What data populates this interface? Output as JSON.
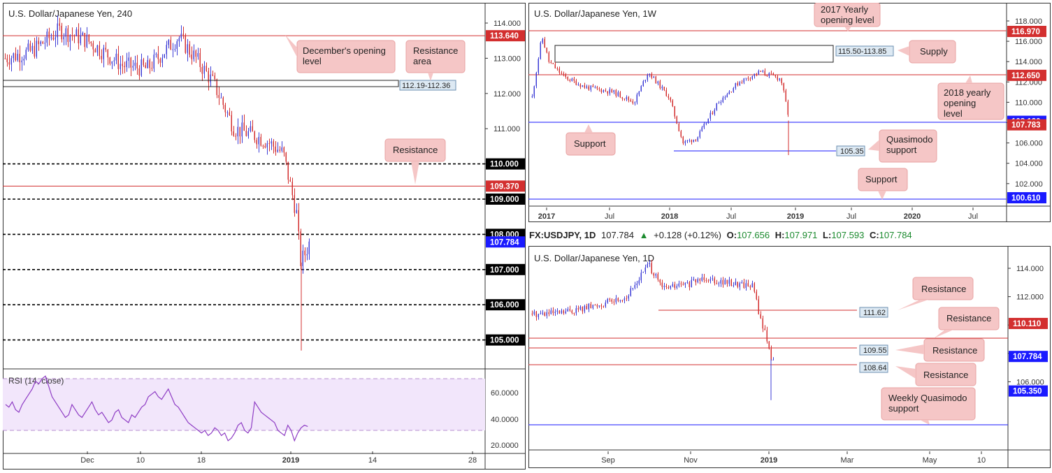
{
  "panels": [
    {
      "id": "p1",
      "title": "U.S. Dollar/Japanese Yen, 240",
      "ticks": [
        {
          "label": "114.000",
          "v": 114.0
        },
        {
          "label": "113.000",
          "v": 113.0
        },
        {
          "label": "112.000",
          "v": 112.0
        },
        {
          "label": "111.000",
          "v": 111.0
        },
        {
          "label": "110.000",
          "v": 110.0
        },
        {
          "label": "109.000",
          "v": 109.0
        },
        {
          "label": "108.000",
          "v": 108.0
        },
        {
          "label": "107.000",
          "v": 107.0
        },
        {
          "label": "106.000",
          "v": 106.0
        },
        {
          "label": "105.000",
          "v": 105.0
        }
      ],
      "xticks": [
        "Dec",
        "10",
        "18",
        "2019",
        "14",
        "28"
      ],
      "hlines": [
        {
          "v": 113.64,
          "color": "#d32f2f",
          "style": "solid"
        },
        {
          "v": 109.37,
          "color": "#d32f2f",
          "style": "solid"
        },
        {
          "v": 110.0,
          "color": "#000000",
          "style": "dash"
        },
        {
          "v": 109.0,
          "color": "#000000",
          "style": "dash"
        },
        {
          "v": 108.0,
          "color": "#000000",
          "style": "dash"
        },
        {
          "v": 107.0,
          "color": "#000000",
          "style": "dash"
        },
        {
          "v": 106.0,
          "color": "#000000",
          "style": "dash"
        },
        {
          "v": 105.0,
          "color": "#000000",
          "style": "dash"
        }
      ],
      "badges": [
        {
          "label": "113.640",
          "v": 113.64,
          "bg": "#d32f2f"
        },
        {
          "label": "110.000",
          "v": 110.0,
          "bg": "#000000"
        },
        {
          "label": "109.370",
          "v": 109.37,
          "bg": "#d32f2f"
        },
        {
          "label": "109.000",
          "v": 109.0,
          "bg": "#000000"
        },
        {
          "label": "108.000",
          "v": 108.0,
          "bg": "#000000"
        },
        {
          "label": "107.784",
          "v": 107.784,
          "bg": "#1a1aff"
        },
        {
          "label": "107.000",
          "v": 107.0,
          "bg": "#000000"
        },
        {
          "label": "106.000",
          "v": 106.0,
          "bg": "#000000"
        },
        {
          "label": "105.000",
          "v": 105.0,
          "bg": "#000000"
        }
      ],
      "zone": {
        "label": "112.19-112.36",
        "top": 112.36,
        "bottom": 112.19
      },
      "callouts": [
        {
          "text": [
            "December's opening",
            "level"
          ]
        },
        {
          "text": [
            "Resistance",
            "area"
          ]
        },
        {
          "text": [
            "Resistance"
          ]
        }
      ],
      "rsi": {
        "title": "RSI (14, close)",
        "ticks": [
          "60.0000",
          "40.0000",
          "20.0000"
        ],
        "upper": 70,
        "lower": 30
      }
    },
    {
      "id": "p2",
      "title": "U.S. Dollar/Japanese Yen, 1W",
      "ticks": [
        {
          "label": "118.000",
          "v": 118
        },
        {
          "label": "116.000",
          "v": 116
        },
        {
          "label": "114.000",
          "v": 114
        },
        {
          "label": "112.000",
          "v": 112
        },
        {
          "label": "110.000",
          "v": 110
        },
        {
          "label": "108.000",
          "v": 108
        },
        {
          "label": "106.000",
          "v": 106
        },
        {
          "label": "104.000",
          "v": 104
        },
        {
          "label": "102.000",
          "v": 102
        }
      ],
      "xticks": [
        "2017",
        "Jul",
        "2018",
        "Jul",
        "2019",
        "Jul",
        "2020",
        "Jul"
      ],
      "badges": [
        {
          "label": "116.970",
          "v": 116.97,
          "bg": "#d32f2f"
        },
        {
          "label": "112.650",
          "v": 112.65,
          "bg": "#d32f2f"
        },
        {
          "label": "108.130",
          "v": 108.13,
          "bg": "#1a1aff"
        },
        {
          "label": "107.783",
          "v": 107.783,
          "bg": "#d32f2f"
        },
        {
          "label": "100.610",
          "v": 100.61,
          "bg": "#1a1aff"
        }
      ],
      "zone": {
        "label": "115.50-113.85"
      },
      "level_label": "105.35",
      "callouts": [
        {
          "text": [
            "2017 Yearly",
            "opening level"
          ]
        },
        {
          "text": [
            "Supply"
          ]
        },
        {
          "text": [
            "2018 yearly",
            "opening",
            "level"
          ]
        },
        {
          "text": [
            "Support"
          ]
        },
        {
          "text": [
            "Quasimodo",
            "support"
          ]
        },
        {
          "text": [
            "Support"
          ]
        }
      ]
    },
    {
      "id": "p3",
      "title": "U.S. Dollar/Japanese Yen, 1D",
      "ticks": [
        {
          "label": "114.000",
          "v": 114
        },
        {
          "label": "112.000",
          "v": 112
        },
        {
          "label": "110.000",
          "v": 110
        },
        {
          "label": "108.000",
          "v": 108
        },
        {
          "label": "106.000",
          "v": 106
        }
      ],
      "xticks": [
        "Sep",
        "Nov",
        "2019",
        "Mar",
        "May",
        "10"
      ],
      "badges": [
        {
          "label": "110.110",
          "v": 110.11,
          "bg": "#d32f2f"
        },
        {
          "label": "107.784",
          "v": 107.784,
          "bg": "#1a1aff"
        },
        {
          "label": "105.350",
          "v": 105.35,
          "bg": "#1a1aff"
        }
      ],
      "level_labels": [
        "111.62",
        "109.55",
        "108.64"
      ],
      "callouts": [
        {
          "text": [
            "Resistance"
          ]
        },
        {
          "text": [
            "Resistance"
          ]
        },
        {
          "text": [
            "Resistance"
          ]
        },
        {
          "text": [
            "Resistance"
          ]
        },
        {
          "text": [
            "Weekly Quasimodo",
            "support"
          ]
        }
      ]
    }
  ],
  "quote": {
    "symbol": "FX:USDJPY, 1D",
    "last": "107.784",
    "arrow": "▲",
    "change": "+0.128 (+0.12%)",
    "o_label": "O:",
    "o": "107.656",
    "h_label": "H:",
    "h": "107.971",
    "l_label": "L:",
    "l": "107.593",
    "c_label": "C:",
    "c": "107.784"
  },
  "colors": {
    "up": "#3d3dd6",
    "down": "#d32f2f",
    "resistance": "#d32f2f",
    "support": "#1a1aff",
    "callout_bg": "#f5c6c6",
    "callout_border": "#e8a3a3",
    "rsi_bg": "#f2e6fb",
    "rsi_line": "#8e3cc4"
  },
  "chart_data": [
    {
      "type": "candlestick",
      "title": "U.S. Dollar/Japanese Yen, 240",
      "x_ticks": [
        "Dec",
        "10",
        "18",
        "2019",
        "14",
        "28"
      ],
      "ylim": [
        104.5,
        114.3
      ],
      "levels": [
        113.64,
        112.36,
        112.19,
        110.0,
        109.37,
        109.0,
        108.0,
        107.0,
        106.0,
        105.0
      ],
      "last": 107.784
    },
    {
      "type": "line",
      "title": "RSI (14, close)",
      "ylim": [
        15,
        75
      ],
      "bands": [
        30,
        70
      ]
    },
    {
      "type": "candlestick",
      "title": "U.S. Dollar/Japanese Yen, 1W",
      "x_ticks": [
        "2017",
        "Jul",
        "2018",
        "Jul",
        "2019",
        "Jul",
        "2020",
        "Jul"
      ],
      "ylim": [
        100,
        119
      ],
      "levels": [
        116.97,
        115.5,
        113.85,
        112.65,
        108.13,
        107.783,
        105.35,
        100.61
      ]
    },
    {
      "type": "candlestick",
      "title": "U.S. Dollar/Japanese Yen, 1D",
      "x_ticks": [
        "Sep",
        "Nov",
        "2019",
        "Mar",
        "May",
        "10"
      ],
      "ylim": [
        104.6,
        115
      ],
      "levels": [
        111.62,
        110.11,
        109.55,
        108.64,
        107.784,
        105.35
      ]
    }
  ]
}
